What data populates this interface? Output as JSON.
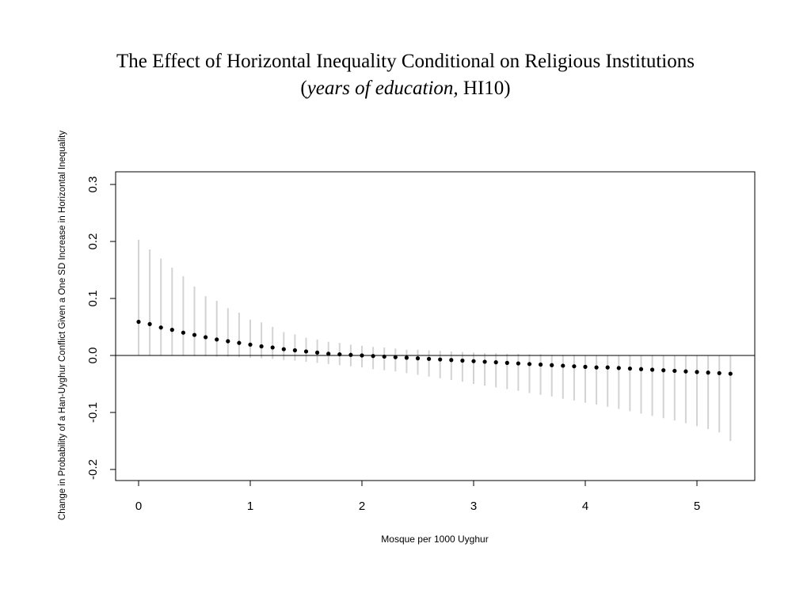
{
  "title": {
    "line1": "The Effect of Horizontal Inequality Conditional on Religious Institutions",
    "open_paren": "(",
    "italic_part": "years of education,",
    "normal_part": " HI10)"
  },
  "chart_data": {
    "type": "scatter",
    "xlabel": "Mosque per 1000 Uyghur",
    "ylabel": "Change in Probability of a Han-Uyghur Conflict Given a One SD Increase in Horizontal Inequality",
    "xlim": [
      -0.2,
      5.5
    ],
    "ylim": [
      -0.22,
      0.32
    ],
    "x_ticks": [
      0,
      1,
      2,
      3,
      4,
      5
    ],
    "y_ticks": [
      -0.2,
      -0.1,
      0.0,
      0.1,
      0.2,
      0.3
    ],
    "y_tick_labels": [
      "-0.2",
      "-0.1",
      "0.0",
      "0.1",
      "0.2",
      "0.3"
    ],
    "reference_line_y": 0.0,
    "interval_color": "#d3d3d3",
    "point_color": "#000000",
    "series": [
      {
        "x": [
          0.0,
          0.1,
          0.2,
          0.3,
          0.4,
          0.5,
          0.6,
          0.7,
          0.8,
          0.9,
          1.0,
          1.1,
          1.2,
          1.3,
          1.4,
          1.5,
          1.6,
          1.7,
          1.8,
          1.9,
          2.0,
          2.1,
          2.2,
          2.3,
          2.4,
          2.5,
          2.6,
          2.7,
          2.8,
          2.9,
          3.0,
          3.1,
          3.2,
          3.3,
          3.4,
          3.5,
          3.6,
          3.7,
          3.8,
          3.9,
          4.0,
          4.1,
          4.2,
          4.3,
          4.4,
          4.5,
          4.6,
          4.7,
          4.8,
          4.9,
          5.0,
          5.1,
          5.2,
          5.3
        ],
        "y": [
          0.059,
          0.055,
          0.049,
          0.045,
          0.04,
          0.036,
          0.032,
          0.028,
          0.025,
          0.022,
          0.019,
          0.016,
          0.014,
          0.011,
          0.009,
          0.007,
          0.005,
          0.003,
          0.002,
          0.001,
          0.0,
          -0.001,
          -0.002,
          -0.003,
          -0.004,
          -0.005,
          -0.006,
          -0.007,
          -0.008,
          -0.009,
          -0.01,
          -0.011,
          -0.012,
          -0.013,
          -0.014,
          -0.015,
          -0.016,
          -0.017,
          -0.018,
          -0.019,
          -0.02,
          -0.021,
          -0.021,
          -0.022,
          -0.023,
          -0.024,
          -0.025,
          -0.026,
          -0.027,
          -0.028,
          -0.029,
          -0.03,
          -0.031,
          -0.032
        ],
        "lower": [
          0.0,
          0.0,
          0.0,
          0.0,
          0.0,
          -0.001,
          -0.001,
          -0.002,
          -0.002,
          -0.003,
          -0.004,
          -0.005,
          -0.006,
          -0.008,
          -0.009,
          -0.011,
          -0.013,
          -0.015,
          -0.017,
          -0.019,
          -0.021,
          -0.024,
          -0.026,
          -0.028,
          -0.031,
          -0.034,
          -0.037,
          -0.04,
          -0.043,
          -0.046,
          -0.05,
          -0.053,
          -0.056,
          -0.059,
          -0.062,
          -0.066,
          -0.069,
          -0.072,
          -0.076,
          -0.079,
          -0.083,
          -0.086,
          -0.09,
          -0.094,
          -0.098,
          -0.102,
          -0.106,
          -0.11,
          -0.114,
          -0.119,
          -0.124,
          -0.129,
          -0.135,
          -0.15
        ],
        "upper": [
          0.203,
          0.186,
          0.17,
          0.154,
          0.139,
          0.121,
          0.104,
          0.096,
          0.083,
          0.075,
          0.063,
          0.058,
          0.05,
          0.041,
          0.037,
          0.031,
          0.028,
          0.024,
          0.022,
          0.019,
          0.017,
          0.015,
          0.014,
          0.012,
          0.01,
          0.01,
          0.009,
          0.008,
          0.007,
          0.006,
          0.005,
          0.004,
          0.004,
          0.003,
          0.003,
          0.002,
          0.002,
          0.001,
          0.001,
          0.001,
          0.0,
          0.0,
          0.0,
          0.0,
          0.0,
          0.0,
          0.0,
          0.0,
          0.0,
          0.0,
          0.0,
          0.0,
          0.0,
          0.0
        ]
      }
    ]
  }
}
